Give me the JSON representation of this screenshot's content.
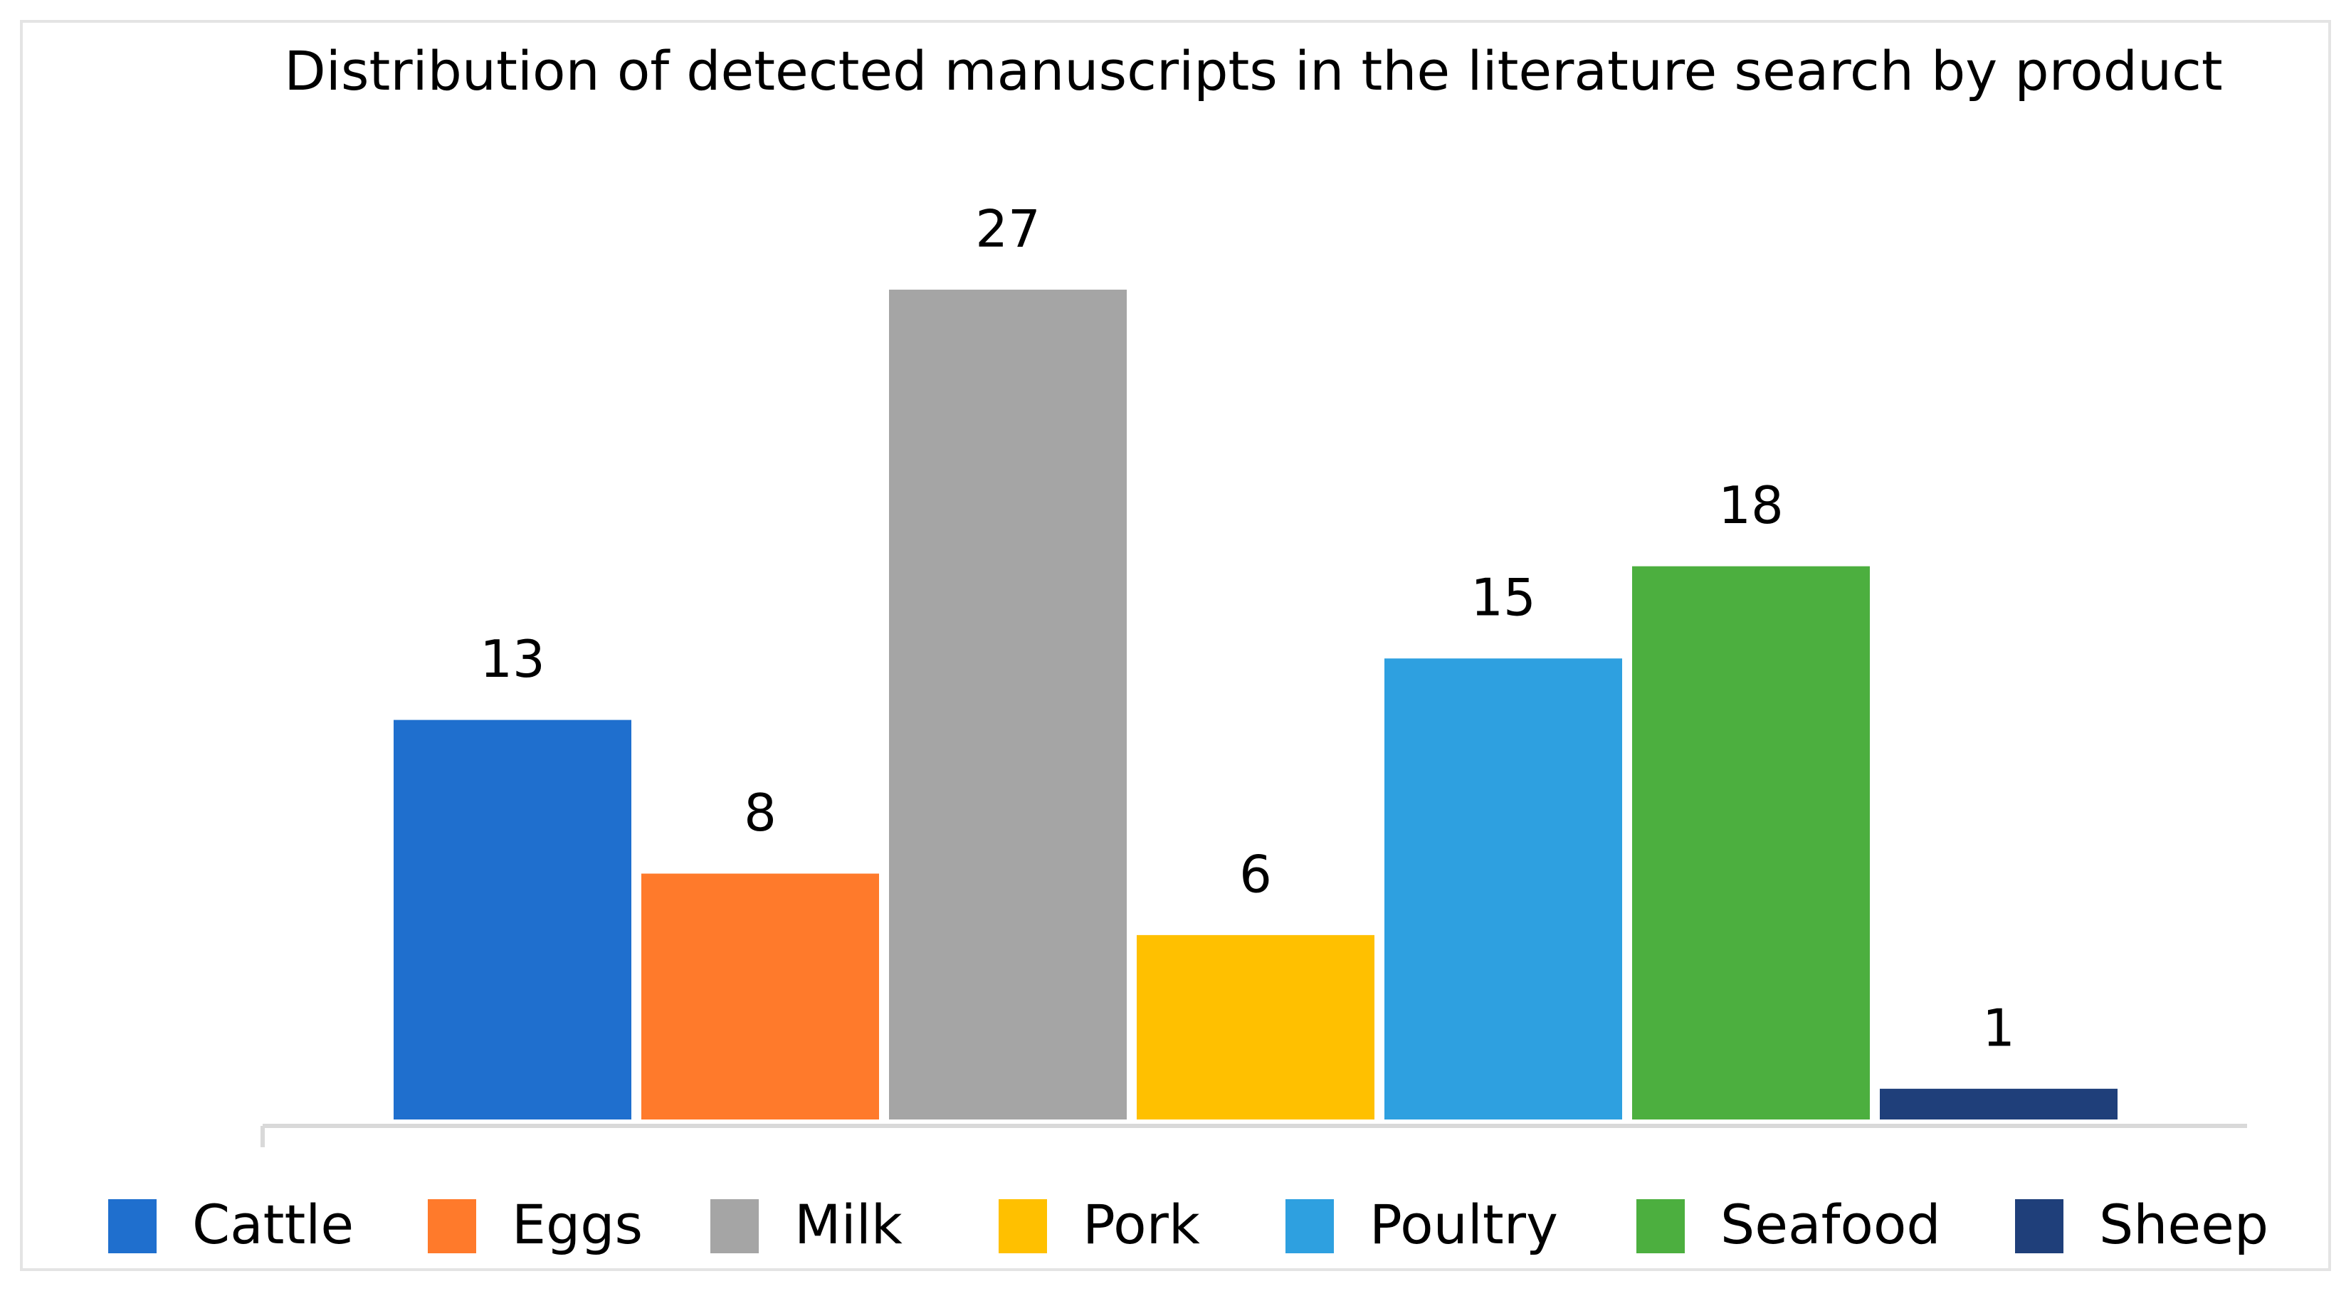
{
  "chart_data": {
    "type": "bar",
    "title": "Distribution of detected manuscripts in the literature search by product",
    "categories": [
      "Cattle",
      "Eggs",
      "Milk",
      "Pork",
      "Poultry",
      "Seafood",
      "Sheep"
    ],
    "values": [
      13,
      8,
      27,
      6,
      15,
      18,
      1
    ],
    "colors": [
      "#1f6fce",
      "#ff7a2b",
      "#a5a5a5",
      "#ffc000",
      "#2ea0e0",
      "#4caf3f",
      "#1f3f7a"
    ],
    "legend": "bottom"
  }
}
